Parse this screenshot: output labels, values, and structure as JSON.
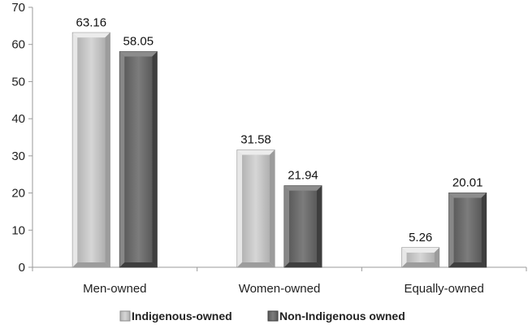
{
  "chart_data": {
    "type": "bar",
    "categories": [
      "Men-owned",
      "Women-owned",
      "Equally-owned"
    ],
    "series": [
      {
        "name": "Indigenous-owned",
        "values": [
          63.16,
          31.58,
          5.26
        ],
        "color": "#c8c8c8"
      },
      {
        "name": "Non-Indigenous owned",
        "values": [
          58.05,
          21.94,
          20.01
        ],
        "color": "#6e6e6e"
      }
    ],
    "value_labels": [
      [
        "63.16",
        "31.58",
        "5.26"
      ],
      [
        "58.05",
        "21.94",
        "20.01"
      ]
    ],
    "title": "",
    "xlabel": "",
    "ylabel": "",
    "ylim": [
      0,
      70
    ],
    "yticks": [
      0,
      10,
      20,
      30,
      40,
      50,
      60,
      70
    ],
    "grid": false,
    "legend_position": "bottom"
  }
}
